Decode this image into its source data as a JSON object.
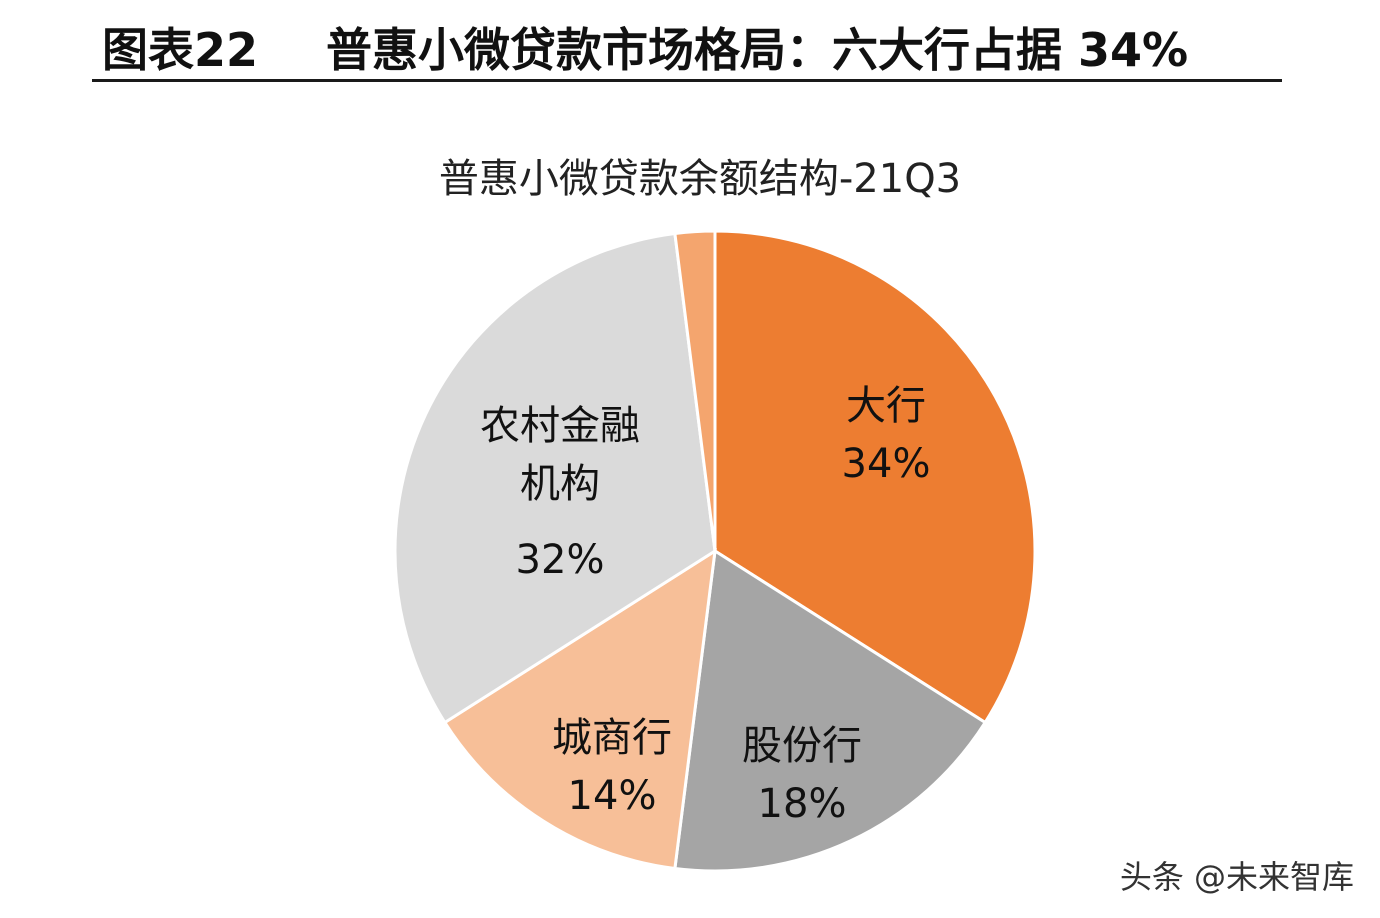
{
  "figure": {
    "label": "图表22",
    "title": "普惠小微贷款市场格局：六大行占据 34%"
  },
  "chart_data": {
    "type": "pie",
    "title": "普惠小微贷款余额结构-21Q3",
    "slices": [
      {
        "label": "大行",
        "value": 34,
        "value_label": "34%",
        "color": "#ED7D31"
      },
      {
        "label": "股份行",
        "value": 18,
        "value_label": "18%",
        "color": "#A5A5A5"
      },
      {
        "label": "城商行",
        "value": 14,
        "value_label": "14%",
        "color": "#F7BF98"
      },
      {
        "label": "农村金融机构",
        "label_lines": [
          "农村金融",
          "机构"
        ],
        "value": 32,
        "value_label": "32%",
        "color": "#DADADA"
      },
      {
        "label": "",
        "value": 2,
        "value_label": "",
        "color": "#F4A56E"
      }
    ]
  },
  "watermark": {
    "text": "头条 @未来智库"
  }
}
